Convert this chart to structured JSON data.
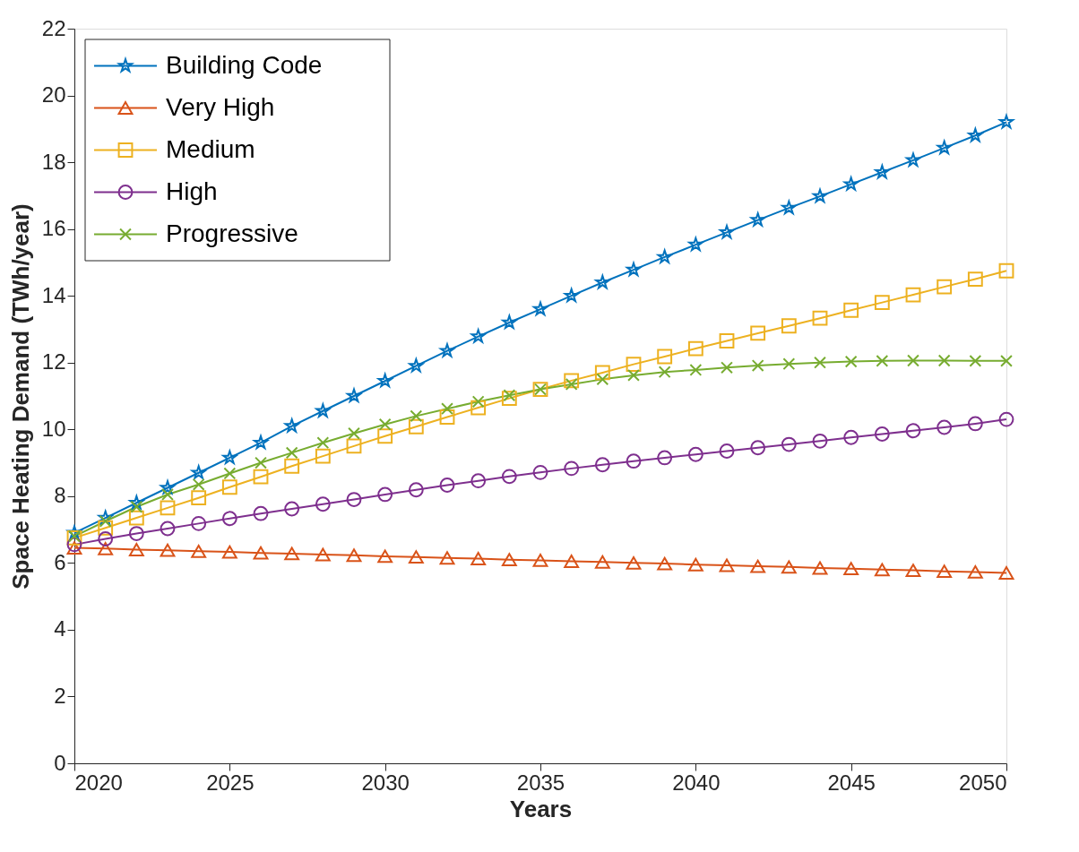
{
  "chart_data": {
    "type": "line",
    "xlabel": "Years",
    "ylabel": "Space Heating Demand (TWh/year)",
    "x": [
      2020,
      2021,
      2022,
      2023,
      2024,
      2025,
      2026,
      2027,
      2028,
      2029,
      2030,
      2031,
      2032,
      2033,
      2034,
      2035,
      2036,
      2037,
      2038,
      2039,
      2040,
      2041,
      2042,
      2043,
      2044,
      2045,
      2046,
      2047,
      2048,
      2049,
      2050
    ],
    "xlim": [
      2020,
      2050
    ],
    "xticks": [
      2020,
      2025,
      2030,
      2035,
      2040,
      2045,
      2050
    ],
    "ylim": [
      0,
      22
    ],
    "yticks": [
      0,
      2,
      4,
      6,
      8,
      10,
      12,
      14,
      16,
      18,
      20,
      22
    ],
    "grid": false,
    "legend": "top left",
    "line_style": "solid",
    "series": [
      {
        "name": "Building Code",
        "color": "#0072bd",
        "marker": "star",
        "values": [
          6.9,
          7.35,
          7.8,
          8.25,
          8.7,
          9.15,
          9.6,
          10.1,
          10.55,
          11.0,
          11.45,
          11.9,
          12.35,
          12.78,
          13.2,
          13.6,
          14.0,
          14.4,
          14.78,
          15.16,
          15.53,
          15.9,
          16.27,
          16.63,
          16.98,
          17.34,
          17.7,
          18.06,
          18.43,
          18.8,
          19.2
        ]
      },
      {
        "name": "Very High",
        "color": "#d95319",
        "marker": "triangle",
        "values": [
          6.45,
          6.43,
          6.4,
          6.38,
          6.35,
          6.33,
          6.3,
          6.28,
          6.25,
          6.23,
          6.2,
          6.18,
          6.15,
          6.13,
          6.1,
          6.08,
          6.05,
          6.03,
          6.0,
          5.98,
          5.95,
          5.93,
          5.9,
          5.88,
          5.85,
          5.83,
          5.8,
          5.78,
          5.75,
          5.73,
          5.7
        ]
      },
      {
        "name": "Medium",
        "color": "#edb120",
        "marker": "square",
        "values": [
          6.75,
          7.05,
          7.35,
          7.65,
          7.95,
          8.27,
          8.58,
          8.9,
          9.2,
          9.5,
          9.8,
          10.08,
          10.37,
          10.65,
          10.93,
          11.2,
          11.46,
          11.7,
          11.95,
          12.18,
          12.42,
          12.65,
          12.88,
          13.1,
          13.33,
          13.57,
          13.8,
          14.03,
          14.27,
          14.5,
          14.75
        ]
      },
      {
        "name": "High",
        "color": "#7e2f8e",
        "marker": "circle",
        "values": [
          6.55,
          6.72,
          6.88,
          7.03,
          7.18,
          7.33,
          7.48,
          7.62,
          7.76,
          7.9,
          8.05,
          8.19,
          8.33,
          8.46,
          8.59,
          8.71,
          8.83,
          8.94,
          9.05,
          9.15,
          9.25,
          9.35,
          9.45,
          9.55,
          9.65,
          9.76,
          9.86,
          9.96,
          10.06,
          10.17,
          10.3
        ]
      },
      {
        "name": "Progressive",
        "color": "#77ac30",
        "marker": "cross",
        "values": [
          6.8,
          7.25,
          7.68,
          8.05,
          8.35,
          8.68,
          9.0,
          9.3,
          9.6,
          9.88,
          10.15,
          10.4,
          10.62,
          10.83,
          11.02,
          11.2,
          11.35,
          11.5,
          11.62,
          11.72,
          11.78,
          11.85,
          11.91,
          11.96,
          12.0,
          12.03,
          12.05,
          12.06,
          12.06,
          12.05,
          12.05
        ]
      }
    ]
  }
}
